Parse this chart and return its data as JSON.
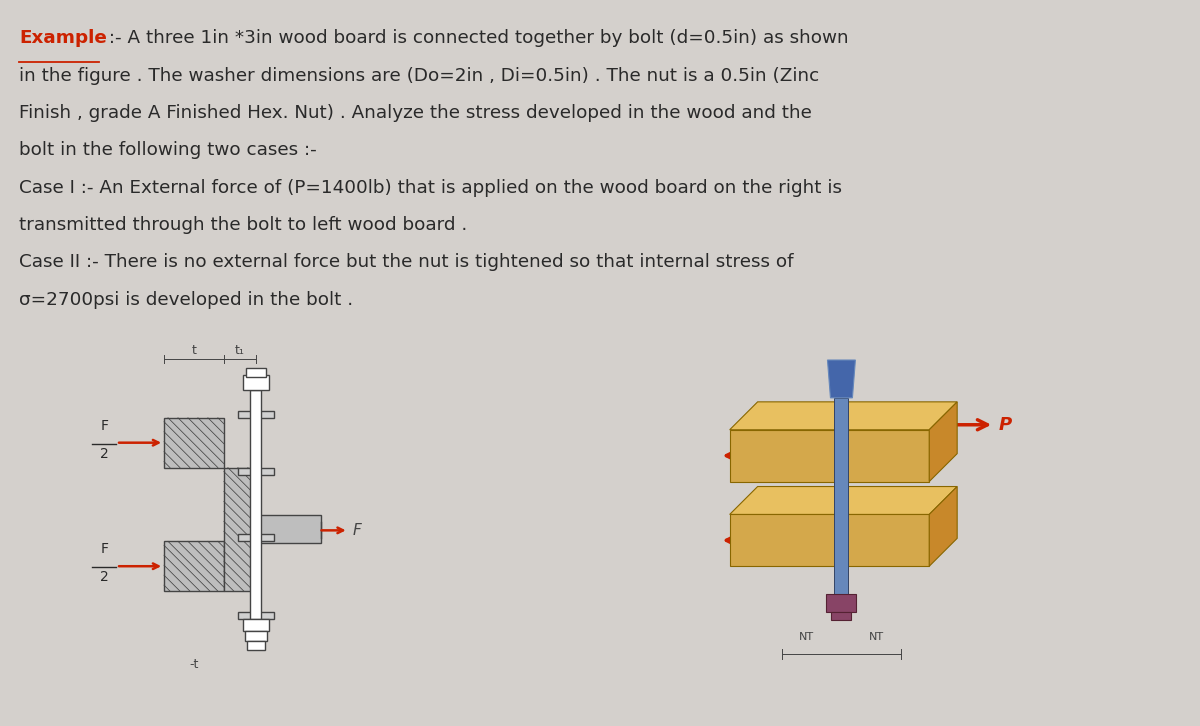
{
  "bg_color": "#d4d0cc",
  "text_color": "#2a2a2a",
  "title_color": "#cc2200",
  "title_word": "Example",
  "title_suffix": " :- A three 1in *3in wood board is connected together by bolt (d=0.5in) as shown",
  "line2": "in the figure . The washer dimensions are (Do=2in , Di=0.5in) . The nut is a 0.5in (Zinc",
  "line3": "Finish , grade A Finished Hex. Nut) . Analyze the stress developed in the wood and the",
  "line4": "bolt in the following two cases :-",
  "line5": "Case I :- An External force of (P=1400lb) that is applied on the wood board on the right is",
  "line6": "transmitted through the bolt to left wood board .",
  "line7": "Case II :- There is no external force but the nut is tightened so that internal stress of",
  "line8": "σ=2700psi is developed in the bolt .",
  "arrow_color": "#cc2200",
  "sketch_color": "#444444",
  "wood_color": "#d4a84b",
  "wood_dark": "#c8882a",
  "wood_top": "#e8c060",
  "bolt_blue": "#4466aa",
  "bolt_blue2": "#6688bb",
  "bolt_purple": "#884466",
  "bolt_purple2": "#552233"
}
